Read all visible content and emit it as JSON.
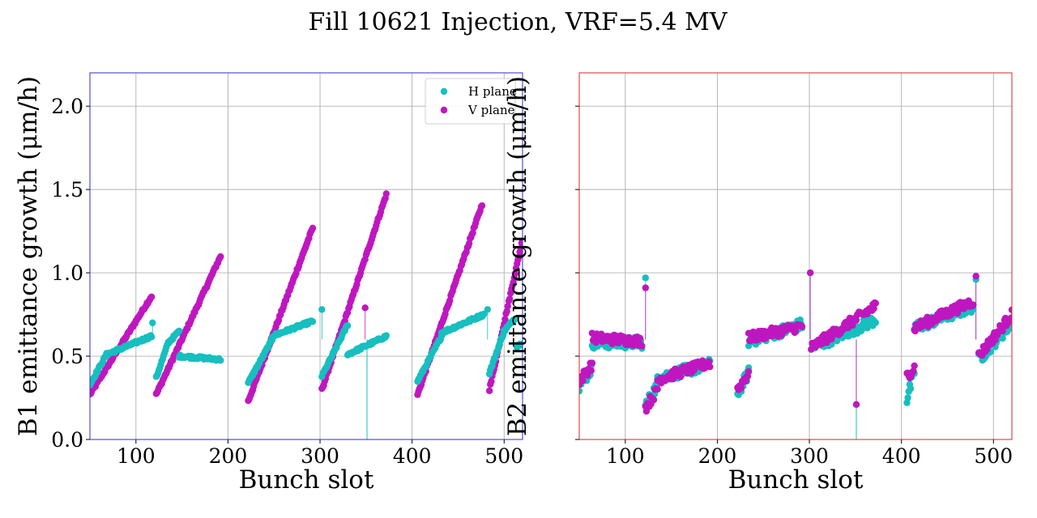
{
  "figure": {
    "title": "Fill 10621 Injection, VRF=5.4 MV"
  },
  "colors": {
    "h_plane": "#17bfbf",
    "v_plane": "#bf17bf",
    "b1_frame": "#2e2ecc",
    "b2_frame": "#d62728"
  },
  "chart_data": [
    {
      "type": "scatter",
      "panel": "B1",
      "xlabel": "Bunch slot",
      "ylabel": "B1 emittance growth (μm/h)",
      "xlim": [
        50,
        520
      ],
      "ylim": [
        0,
        2.2
      ],
      "xticks": [
        100,
        200,
        300,
        400,
        500
      ],
      "yticks": [
        0.0,
        0.5,
        1.0,
        1.5,
        2.0
      ],
      "ytick_labels": [
        "0.0",
        "0.5",
        "1.0",
        "1.5",
        "2.0"
      ],
      "grid": true,
      "legend": {
        "position": "top-right",
        "entries": [
          "H plane",
          "V plane"
        ]
      },
      "series": [
        {
          "name": "H plane",
          "segments": [
            {
              "x_start": 50,
              "x_end": 68,
              "y_start": 0.33,
              "y_end": 0.51
            },
            {
              "x_start": 68,
              "x_end": 117,
              "y_start": 0.51,
              "y_end": 0.62
            },
            {
              "x_start": 122,
              "x_end": 135,
              "y_start": 0.37,
              "y_end": 0.58
            },
            {
              "x_start": 135,
              "x_end": 147,
              "y_start": 0.58,
              "y_end": 0.65
            },
            {
              "x_start": 147,
              "x_end": 192,
              "y_start": 0.5,
              "y_end": 0.48
            },
            {
              "x_start": 222,
              "x_end": 248,
              "y_start": 0.34,
              "y_end": 0.6
            },
            {
              "x_start": 248,
              "x_end": 292,
              "y_start": 0.62,
              "y_end": 0.71
            },
            {
              "x_start": 302,
              "x_end": 330,
              "y_start": 0.38,
              "y_end": 0.69
            },
            {
              "x_start": 330,
              "x_end": 372,
              "y_start": 0.51,
              "y_end": 0.62
            },
            {
              "x_start": 406,
              "x_end": 432,
              "y_start": 0.35,
              "y_end": 0.62
            },
            {
              "x_start": 432,
              "x_end": 478,
              "y_start": 0.64,
              "y_end": 0.75
            },
            {
              "x_start": 484,
              "x_end": 500,
              "y_start": 0.4,
              "y_end": 0.65
            },
            {
              "x_start": 500,
              "x_end": 512,
              "y_start": 0.65,
              "y_end": 0.73
            },
            {
              "x_start": 514,
              "x_end": 520,
              "y_start": 0.56,
              "y_end": 0.58
            }
          ],
          "outliers": [
            {
              "x": 118,
              "y": 0.7
            },
            {
              "x": 302,
              "y": 0.78
            },
            {
              "x": 482,
              "y": 0.78
            },
            {
              "x": 351,
              "y": 0.0
            }
          ]
        },
        {
          "name": "V plane",
          "segments": [
            {
              "x_start": 50,
              "x_end": 117,
              "y_start": 0.27,
              "y_end": 0.86
            },
            {
              "x_start": 122,
              "x_end": 192,
              "y_start": 0.27,
              "y_end": 1.1
            },
            {
              "x_start": 222,
              "x_end": 292,
              "y_start": 0.23,
              "y_end": 1.27
            },
            {
              "x_start": 302,
              "x_end": 372,
              "y_start": 0.3,
              "y_end": 1.47
            },
            {
              "x_start": 406,
              "x_end": 476,
              "y_start": 0.27,
              "y_end": 1.41
            },
            {
              "x_start": 484,
              "x_end": 520,
              "y_start": 0.3,
              "y_end": 1.2
            }
          ],
          "outliers": [
            {
              "x": 349,
              "y": 0.79
            }
          ]
        }
      ]
    },
    {
      "type": "scatter",
      "panel": "B2",
      "xlabel": "Bunch slot",
      "ylabel": "B2 emittance growth (μm/h)",
      "xlim": [
        50,
        520
      ],
      "ylim": [
        0,
        2.2
      ],
      "xticks": [
        100,
        200,
        300,
        400,
        500
      ],
      "yticks": [
        0.0,
        0.5,
        1.0,
        1.5,
        2.0
      ],
      "grid": true,
      "series": [
        {
          "name": "H plane",
          "segments": [
            {
              "x_start": 50,
              "x_end": 64,
              "y_start": 0.32,
              "y_end": 0.43
            },
            {
              "x_start": 64,
              "x_end": 118,
              "y_start": 0.58,
              "y_end": 0.58
            },
            {
              "x_start": 122,
              "x_end": 135,
              "y_start": 0.2,
              "y_end": 0.33
            },
            {
              "x_start": 135,
              "x_end": 192,
              "y_start": 0.37,
              "y_end": 0.45
            },
            {
              "x_start": 222,
              "x_end": 234,
              "y_start": 0.28,
              "y_end": 0.4
            },
            {
              "x_start": 234,
              "x_end": 292,
              "y_start": 0.59,
              "y_end": 0.69
            },
            {
              "x_start": 302,
              "x_end": 372,
              "y_start": 0.55,
              "y_end": 0.72
            },
            {
              "x_start": 406,
              "x_end": 414,
              "y_start": 0.24,
              "y_end": 0.4
            },
            {
              "x_start": 414,
              "x_end": 478,
              "y_start": 0.67,
              "y_end": 0.8
            },
            {
              "x_start": 484,
              "x_end": 520,
              "y_start": 0.48,
              "y_end": 0.7
            }
          ],
          "outliers": [
            {
              "x": 122,
              "y": 0.97
            },
            {
              "x": 301,
              "y": 1.0
            },
            {
              "x": 481,
              "y": 0.96
            },
            {
              "x": 351,
              "y": 0.0
            }
          ]
        },
        {
          "name": "V plane",
          "segments": [
            {
              "x_start": 50,
              "x_end": 64,
              "y_start": 0.35,
              "y_end": 0.45
            },
            {
              "x_start": 64,
              "x_end": 118,
              "y_start": 0.61,
              "y_end": 0.59
            },
            {
              "x_start": 122,
              "x_end": 135,
              "y_start": 0.19,
              "y_end": 0.3
            },
            {
              "x_start": 135,
              "x_end": 192,
              "y_start": 0.36,
              "y_end": 0.46
            },
            {
              "x_start": 222,
              "x_end": 234,
              "y_start": 0.3,
              "y_end": 0.4
            },
            {
              "x_start": 234,
              "x_end": 292,
              "y_start": 0.61,
              "y_end": 0.68
            },
            {
              "x_start": 302,
              "x_end": 372,
              "y_start": 0.55,
              "y_end": 0.8
            },
            {
              "x_start": 406,
              "x_end": 414,
              "y_start": 0.38,
              "y_end": 0.43
            },
            {
              "x_start": 414,
              "x_end": 478,
              "y_start": 0.67,
              "y_end": 0.83
            },
            {
              "x_start": 484,
              "x_end": 520,
              "y_start": 0.5,
              "y_end": 0.75
            }
          ],
          "outliers": [
            {
              "x": 122,
              "y": 0.91
            },
            {
              "x": 301,
              "y": 1.0
            },
            {
              "x": 481,
              "y": 0.98
            },
            {
              "x": 351,
              "y": 0.21
            }
          ]
        }
      ]
    }
  ]
}
